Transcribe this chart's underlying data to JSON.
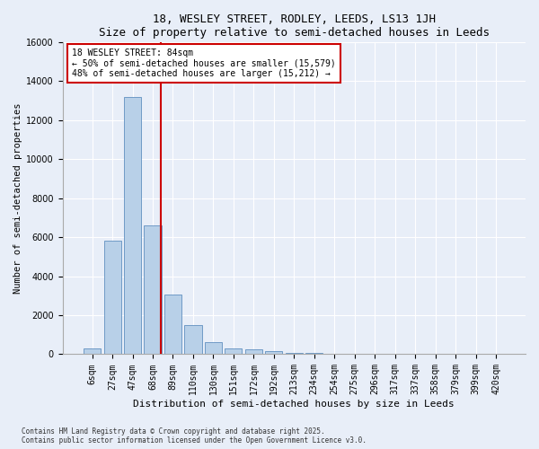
{
  "title": "18, WESLEY STREET, RODLEY, LEEDS, LS13 1JH",
  "subtitle": "Size of property relative to semi-detached houses in Leeds",
  "xlabel": "Distribution of semi-detached houses by size in Leeds",
  "ylabel": "Number of semi-detached properties",
  "bar_labels": [
    "6sqm",
    "27sqm",
    "47sqm",
    "68sqm",
    "89sqm",
    "110sqm",
    "130sqm",
    "151sqm",
    "172sqm",
    "192sqm",
    "213sqm",
    "234sqm",
    "254sqm",
    "275sqm",
    "296sqm",
    "317sqm",
    "337sqm",
    "358sqm",
    "379sqm",
    "399sqm",
    "420sqm"
  ],
  "bar_values": [
    300,
    5800,
    13200,
    6600,
    3050,
    1500,
    620,
    310,
    260,
    150,
    90,
    80,
    0,
    0,
    0,
    0,
    0,
    0,
    0,
    0,
    0
  ],
  "bar_color": "#b8d0e8",
  "bar_edgecolor": "#6090c0",
  "vline_color": "#cc0000",
  "vline_x": 3.42,
  "annotation_text": "18 WESLEY STREET: 84sqm\n← 50% of semi-detached houses are smaller (15,579)\n48% of semi-detached houses are larger (15,212) →",
  "annotation_box_edgecolor": "#cc0000",
  "ylim": [
    0,
    16000
  ],
  "yticks": [
    0,
    2000,
    4000,
    6000,
    8000,
    10000,
    12000,
    14000,
    16000
  ],
  "footer_line1": "Contains HM Land Registry data © Crown copyright and database right 2025.",
  "footer_line2": "Contains public sector information licensed under the Open Government Licence v3.0.",
  "bg_color": "#e8eef8",
  "plot_bg_color": "#e8eef8",
  "title_fontsize": 9,
  "subtitle_fontsize": 8,
  "tick_fontsize": 7,
  "ylabel_fontsize": 7.5,
  "xlabel_fontsize": 8
}
